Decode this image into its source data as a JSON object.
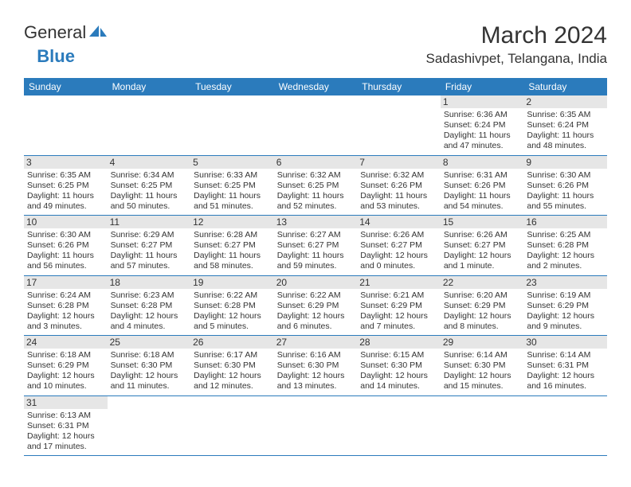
{
  "logo": {
    "part1": "General",
    "part2": "Blue"
  },
  "title": "March 2024",
  "location": "Sadashivpet, Telangana, India",
  "headers": [
    "Sunday",
    "Monday",
    "Tuesday",
    "Wednesday",
    "Thursday",
    "Friday",
    "Saturday"
  ],
  "colors": {
    "header_bg": "#2b7bbc",
    "header_fg": "#ffffff",
    "daynum_bg": "#e6e6e6",
    "border": "#2b7bbc",
    "logo_blue": "#2b7bbc"
  },
  "firstDayIndex": 5,
  "days": [
    {
      "n": "1",
      "sr": "6:36 AM",
      "ss": "6:24 PM",
      "dl": "11 hours and 47 minutes."
    },
    {
      "n": "2",
      "sr": "6:35 AM",
      "ss": "6:24 PM",
      "dl": "11 hours and 48 minutes."
    },
    {
      "n": "3",
      "sr": "6:35 AM",
      "ss": "6:25 PM",
      "dl": "11 hours and 49 minutes."
    },
    {
      "n": "4",
      "sr": "6:34 AM",
      "ss": "6:25 PM",
      "dl": "11 hours and 50 minutes."
    },
    {
      "n": "5",
      "sr": "6:33 AM",
      "ss": "6:25 PM",
      "dl": "11 hours and 51 minutes."
    },
    {
      "n": "6",
      "sr": "6:32 AM",
      "ss": "6:25 PM",
      "dl": "11 hours and 52 minutes."
    },
    {
      "n": "7",
      "sr": "6:32 AM",
      "ss": "6:26 PM",
      "dl": "11 hours and 53 minutes."
    },
    {
      "n": "8",
      "sr": "6:31 AM",
      "ss": "6:26 PM",
      "dl": "11 hours and 54 minutes."
    },
    {
      "n": "9",
      "sr": "6:30 AM",
      "ss": "6:26 PM",
      "dl": "11 hours and 55 minutes."
    },
    {
      "n": "10",
      "sr": "6:30 AM",
      "ss": "6:26 PM",
      "dl": "11 hours and 56 minutes."
    },
    {
      "n": "11",
      "sr": "6:29 AM",
      "ss": "6:27 PM",
      "dl": "11 hours and 57 minutes."
    },
    {
      "n": "12",
      "sr": "6:28 AM",
      "ss": "6:27 PM",
      "dl": "11 hours and 58 minutes."
    },
    {
      "n": "13",
      "sr": "6:27 AM",
      "ss": "6:27 PM",
      "dl": "11 hours and 59 minutes."
    },
    {
      "n": "14",
      "sr": "6:26 AM",
      "ss": "6:27 PM",
      "dl": "12 hours and 0 minutes."
    },
    {
      "n": "15",
      "sr": "6:26 AM",
      "ss": "6:27 PM",
      "dl": "12 hours and 1 minute."
    },
    {
      "n": "16",
      "sr": "6:25 AM",
      "ss": "6:28 PM",
      "dl": "12 hours and 2 minutes."
    },
    {
      "n": "17",
      "sr": "6:24 AM",
      "ss": "6:28 PM",
      "dl": "12 hours and 3 minutes."
    },
    {
      "n": "18",
      "sr": "6:23 AM",
      "ss": "6:28 PM",
      "dl": "12 hours and 4 minutes."
    },
    {
      "n": "19",
      "sr": "6:22 AM",
      "ss": "6:28 PM",
      "dl": "12 hours and 5 minutes."
    },
    {
      "n": "20",
      "sr": "6:22 AM",
      "ss": "6:29 PM",
      "dl": "12 hours and 6 minutes."
    },
    {
      "n": "21",
      "sr": "6:21 AM",
      "ss": "6:29 PM",
      "dl": "12 hours and 7 minutes."
    },
    {
      "n": "22",
      "sr": "6:20 AM",
      "ss": "6:29 PM",
      "dl": "12 hours and 8 minutes."
    },
    {
      "n": "23",
      "sr": "6:19 AM",
      "ss": "6:29 PM",
      "dl": "12 hours and 9 minutes."
    },
    {
      "n": "24",
      "sr": "6:18 AM",
      "ss": "6:29 PM",
      "dl": "12 hours and 10 minutes."
    },
    {
      "n": "25",
      "sr": "6:18 AM",
      "ss": "6:30 PM",
      "dl": "12 hours and 11 minutes."
    },
    {
      "n": "26",
      "sr": "6:17 AM",
      "ss": "6:30 PM",
      "dl": "12 hours and 12 minutes."
    },
    {
      "n": "27",
      "sr": "6:16 AM",
      "ss": "6:30 PM",
      "dl": "12 hours and 13 minutes."
    },
    {
      "n": "28",
      "sr": "6:15 AM",
      "ss": "6:30 PM",
      "dl": "12 hours and 14 minutes."
    },
    {
      "n": "29",
      "sr": "6:14 AM",
      "ss": "6:30 PM",
      "dl": "12 hours and 15 minutes."
    },
    {
      "n": "30",
      "sr": "6:14 AM",
      "ss": "6:31 PM",
      "dl": "12 hours and 16 minutes."
    },
    {
      "n": "31",
      "sr": "6:13 AM",
      "ss": "6:31 PM",
      "dl": "12 hours and 17 minutes."
    }
  ],
  "labels": {
    "sunrise": "Sunrise:",
    "sunset": "Sunset:",
    "daylight": "Daylight:"
  }
}
